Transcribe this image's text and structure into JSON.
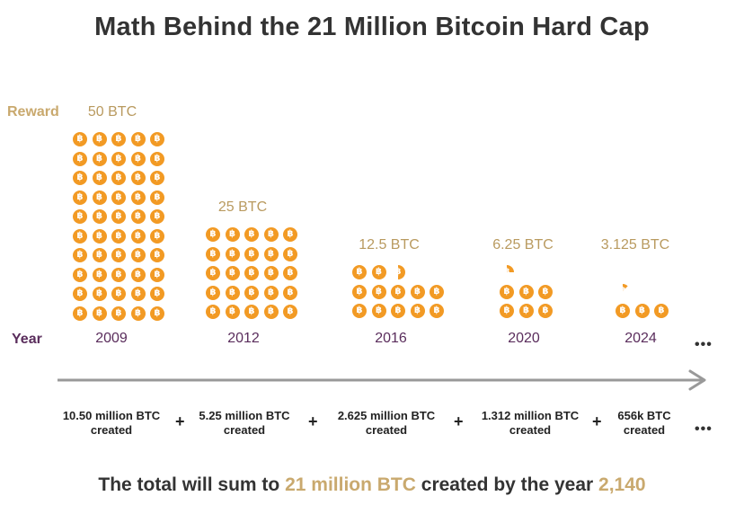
{
  "title": "Math Behind the 21 Million Bitcoin Hard Cap",
  "labels": {
    "reward": "Reward",
    "year": "Year"
  },
  "coin_symbol": "฿",
  "coin_icon": "bitcoin-icon",
  "colors": {
    "coin": "#f29a24",
    "accent": "#c9a96e",
    "year": "#5a2d5c",
    "text": "#333333",
    "arrow": "#999999"
  },
  "eras": [
    {
      "year": "2009",
      "reward": "50 BTC",
      "created": [
        "10.50 million BTC",
        "created"
      ]
    },
    {
      "year": "2012",
      "reward": "25 BTC",
      "created": [
        "5.25 million BTC",
        "created"
      ]
    },
    {
      "year": "2016",
      "reward": "12.5 BTC",
      "created": [
        "2.625 million BTC",
        "created"
      ]
    },
    {
      "year": "2020",
      "reward": "6.25 BTC",
      "created": [
        "1.312 million BTC",
        "created"
      ]
    },
    {
      "year": "2024",
      "reward": "3.125 BTC",
      "created": [
        "656k BTC",
        "created"
      ]
    }
  ],
  "plus_sign": "+",
  "ellipsis": "•••",
  "total": {
    "prefix": "The total will sum to ",
    "amount": "21 million BTC",
    "middle": " created by the year ",
    "year": "2,140"
  }
}
